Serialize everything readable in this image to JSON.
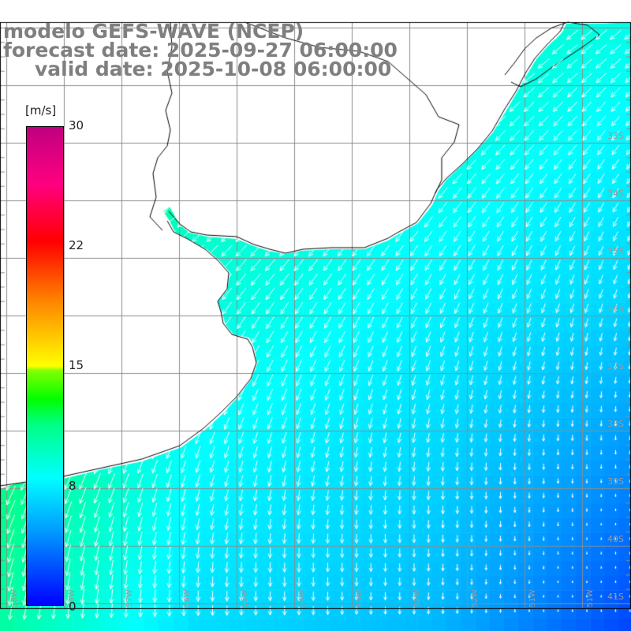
{
  "title": {
    "line1": "modelo GEFS-WAVE (NCEP)",
    "line2": "forecast date: 2025-09-27 06:00:00",
    "line3": "valid date: 2025-10-08 06:00:00"
  },
  "colorbar": {
    "unit": "[m/s]",
    "min": 0,
    "max": 30,
    "ticks": [
      "30",
      "22",
      "15",
      "8",
      "0"
    ],
    "tick_values": [
      30,
      22,
      15,
      8,
      0
    ]
  },
  "lat_labels": [
    "33S",
    "34S",
    "35S",
    "36S",
    "37S",
    "38S",
    "39S",
    "40S",
    "41S"
  ],
  "lon_labels": [
    "58W",
    "57W",
    "56W",
    "55W",
    "54W",
    "53W",
    "52W",
    "51W"
  ],
  "wind": {
    "description_colors": {
      "land": "#ffffff",
      "grid": "#8c8c8c",
      "arrow": "#ffffff",
      "coast": "#000000"
    }
  }
}
